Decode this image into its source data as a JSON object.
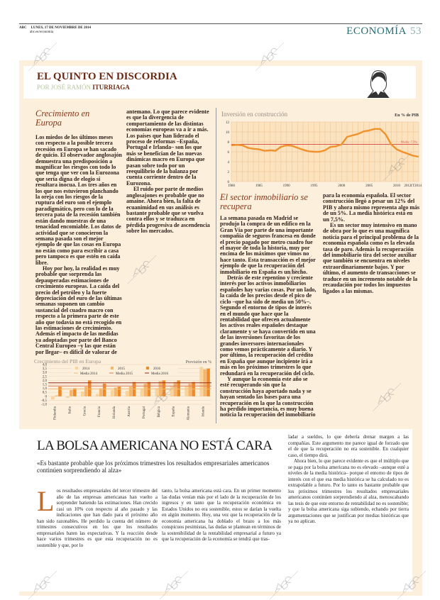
{
  "header": {
    "brand": "ABC",
    "date": "LUNES, 17 DE NOVIEMBRE DE 2014",
    "url": "abc.es/economia",
    "section": "ECONOMÍA",
    "page": "53"
  },
  "column": {
    "title": "EL QUINTO EN DISCORDIA",
    "byline_prefix": "POR JOSÉ RAMÓN",
    "byline_name": "ITURRIAGA",
    "section1_heading": "Crecimiento en Europa",
    "section1_paragraphs": [
      "Los miedos de los últimos meses con respecto a la posible tercera recesión en Europa se han sacado de quicio. El observador anglosajón demuestra una predisposición a magnificar los riesgos con todo lo que tenga que ver con la Eurozona que sería digna de elogio si resultara inocua. Los tres años en los que nos estuvieron planchando la oreja con los riesgos de la ruptura del euro son el ejemplo paradigmático, pero con lo de la tercera pata de la recesión también están dando muestras de una tenacidad encomiable. Los datos de actividad que se conocieron la semana pasada son el mejor ejemplo de que las cosas en Europa no están como para escribir a casa pero tampoco es que estén en caída libre.",
      "Hoy por hoy, la realidad es muy probable que sorprenda las depauperadas estimaciones de crecimiento europeas. La caída del precio del petróleo y la fuerte depreciación del euro de las últimas semanas suponen un cambio sustancial del cuadro macro con respecto a la primera parte de este año que todavía no está recogido en las estimaciones de crecimiento. Además el impacto de las medidas ya adoptadas por parte del Banco Central Europeo –y las que están por llegar– es difícil de valorar de antemano. Lo que parece evidente es que la divergencia de comportamiento de las distintas economías europeas va a ir a más. Los países que han liderado el proceso de reformas –España, Portugal e Irlanda– son los que más se benefician de las nuevas dinámicas macro en Europa que pasan sobre todo por un reequilibrio de la balanza por cuenta corriente dentro de la Eurozona.",
      "El ruido por parte de medios anglosajones es probable que no amaine. Ahora bien, la falta de ecuanimidad en sus análisis es bastante probable que se vuelva contra ellos y se traduzca en pérdida progresiva de ascendencia sobre los mercados."
    ],
    "section2_heading": "El sector inmobiliario se recupera",
    "section2_paragraphs": [
      "La semana pasada en Madrid se produjo la compra de un edifico en la Gran Vía por parte de una importante compañía de seguros francesa en donde el precio pagado por metro cuadro fue el mayor de toda la historia, muy por encima de los máximos que vimos no hace tanto. Esta transacción es el mejor ejemplo de que la recuperación del inmobiliario en España es un hecho.",
      "Detrás de este repentino y creciente interés por los activos inmobiliarios españoles hay varias cosas. Por un lado, la caída de los precios desde el pico de ciclo –que ha sido de media un 50%–. Segundo el entorno de tipos de interés en el mundo que hace que la rentabilidad que ofrecen actualmente los activos reales españoles destaque claramente y se haya convertido en una de las inversiones favoritas de los grandes inversores internacionales como vemos prácticamente a diario. Y por último, la recuperación del crédito en España que aunque incipiente irá a más en los próximos trimestres lo que redundará en la recuperación del ciclo.",
      "Y aunque la economía este año se esté recuperando sin que la construcción haya aportado nada y se hayan sentado las bases para una recuperación en la que la construcción ha perdido importancia, es muy buena noticia la recuperación del inmobiliario para la economía española. El sector construcción llegó a pesar un 12% del PIB y ahora mismo representa algo más de un 5%. La media histórica está en un 7,5%.",
      "Es un sector muy intensivo en mano de obra por lo que es una magnífica noticia para el principal problema de la economía española como es la elevada tasa de paro. Además la recuperación del inmobiliario tira del sector auxiliar que también se encuentra en niveles extraordinariamente bajos. Y por último, el aumento de transacciones se traduce en un incremento notable de la recaudación por todos los impuestos ligados a las mismas."
    ]
  },
  "chart_data": [
    {
      "type": "line",
      "title": "Inversión en construcción",
      "unit_label": "En % de PIB",
      "x": [
        1980,
        1981,
        1982,
        1983,
        1984,
        1985,
        1986,
        1987,
        1988,
        1989,
        1990,
        1991,
        1992,
        1993,
        1994,
        1995,
        1996,
        1997,
        1998,
        1999,
        2000,
        2001,
        2002,
        2003,
        2004,
        2005,
        2006,
        2007,
        2008,
        2009,
        2010,
        2011,
        2012,
        2013,
        2014
      ],
      "series": [
        {
          "values": [
            7.3,
            7.4,
            7.3,
            6.8,
            6.6,
            6.5,
            6.2,
            6.3,
            6.2,
            7.0,
            7.3,
            7.2,
            6.8,
            6.4,
            6.1,
            6.0,
            6.0,
            6.3,
            7.0,
            7.1,
            7.5,
            9.0,
            9.3,
            9.6,
            10.1,
            10.3,
            10.6,
            10.6,
            9.5,
            7.5,
            6.5,
            6.0,
            5.6,
            5.2,
            5.0
          ]
        }
      ],
      "reference_line": {
        "label": "Media: 7,5%",
        "value": 7.5
      },
      "x_tick_labels": [
        "1980",
        "1985",
        "1990",
        "1995",
        "2000",
        "2005",
        "2010",
        "2012",
        "1T2014"
      ],
      "x_ticks": [
        1980,
        1985,
        1990,
        1995,
        2000,
        2005,
        2010,
        2012,
        2014
      ],
      "y_ticks": [
        0,
        2,
        4,
        6,
        8,
        10,
        12
      ],
      "ylim": [
        0,
        12
      ],
      "grid": true,
      "colors": {
        "line": "#f0922b",
        "reference": "#d9534f",
        "background": "#fbe3c0"
      }
    },
    {
      "type": "bar",
      "title": "Crecimiento del PIB en Europa",
      "unit_label": "Previsión en %",
      "categories": [
        "Finlandia",
        "Italia",
        "Grecia",
        "Francia",
        "Holanda",
        "Austria",
        "Portugal",
        "Bélgica",
        "España",
        "Alemania",
        "Irlanda"
      ],
      "series": [
        {
          "name": "2014",
          "values": [
            -0.4,
            -0.2,
            0.6,
            0.3,
            0.8,
            0.7,
            0.9,
            1.0,
            1.3,
            1.3,
            3.7
          ],
          "color": "#f9d39a"
        },
        {
          "name": "2015",
          "values": [
            0.1,
            0.8,
            1.2,
            1.0,
            1.1,
            1.2,
            1.6,
            1.9,
            1.8,
            1.6,
            3.4
          ],
          "color": "#f5b56a"
        },
        {
          "name": "2016",
          "values": [
            1.2,
            1.0,
            2.0,
            1.6,
            1.2,
            1.8,
            1.8,
            2.0,
            2.0,
            1.8,
            3.5
          ],
          "color": "#ee8a2a"
        }
      ],
      "reference_lines": [
        {
          "name": "Media 2014",
          "value": 0.9,
          "color": "#f2c27a"
        },
        {
          "name": "Media 2015",
          "value": 1.3,
          "color": "#e07a5a"
        },
        {
          "name": "Media 2016",
          "value": 1.7,
          "color": "#9b2a1a"
        }
      ],
      "y_ticks": [
        -1.0,
        -0.5,
        0,
        0.5,
        1.0,
        1.5,
        2.0,
        2.5,
        3.0,
        3.5,
        4.0
      ],
      "y_tick_labels": [
        "-1,0",
        "-0,5",
        "0",
        "0,5",
        "1,0",
        "1,5",
        "2,0",
        "2,5",
        "3,0",
        "3,5",
        "4,0"
      ],
      "ylim": [
        -1.0,
        4.0
      ],
      "legend": "top"
    }
  ],
  "article": {
    "title": "LA BOLSA AMERICANA NO ESTÁ CARA",
    "quote": "«Es bastante probable que los próximos trimestres los resultados empresariales americanos continúen sorprendiendo al alza»",
    "dropcap": "L",
    "paragraph1": "os resultados empresariales del tercer trimestre del año de las empresas americanas han vuelto a sorprender batiendo las estimaciones. Han crecido casi un 10% con respecto al año pasado y las indicaciones que han dado para el próximo año han sido razonables. He perdido la cuenta del número de trimestres consecutivos en los que los resultados empresariales baten las expectativas. Y la reacción desde hace varios trimestres es que esta recuperación no es sostenible y que, por lo",
    "paragraph2": "tanto, la bolsa americana está cara. En un primer momento las dudas venían más por el lado de la recuperación de los ingresos y en tanto que la recuperación económica en Estados Unidos no era sostenible, estos se darían la vuelta en algún momento. Hoy, una vez que la recuperación de la economía americana ha doblado el brazo a los más conspicuos pesimistas, las dudas se plantean en términos de la sostenibilidad de la rentabilidad empresarial a futuro ya que la recuperación de la economía se tendrá que tras-",
    "paragraph3": "ladar a sueldos, lo que debería drenar margen a las compañías. Este argumento me parece igual de forzado que el de que la recuperación no era sostenible. En cualquier caso, el tiempo dirá.",
    "paragraph4": "Ahora bien, lo que parece evidente es que el múltiplo que se paga por la bolsa americana no es elevado –aunque esté a niveles de la media histórica– porque el entorno de tipos de interés con el que esa media histórica se ha calculado no es extrapolable a futuro. Por lo tanto es bastante probable que los próximos trimestres los resultados empresariales americanos continúen sorprendiendo al alza, menoscabando las tesis de que este entorno de rentabilidad no es sostenible; y que la bolsa americana siga subiendo, echando por tierra argumentaciones que se justifican por medias históricas que ya no aplican."
  },
  "watermark": "ABC"
}
